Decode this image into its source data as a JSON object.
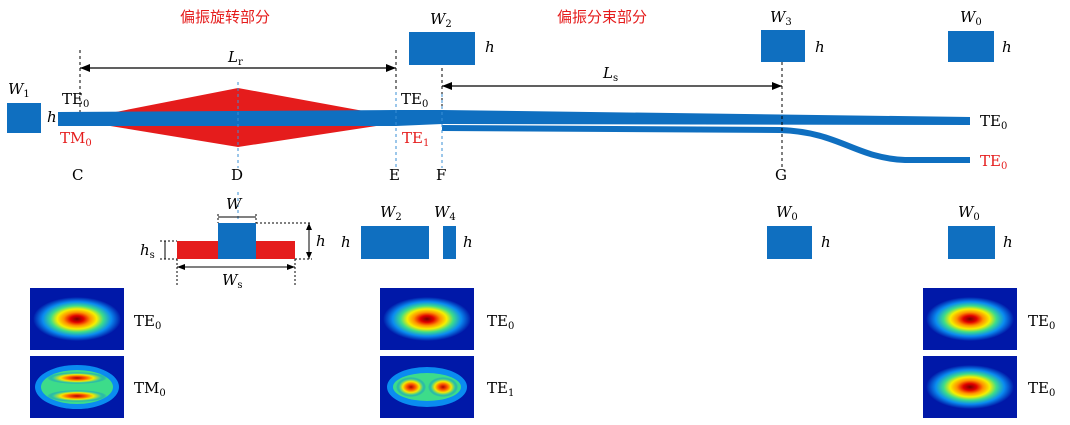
{
  "headings": {
    "rotation": "偏振旋转部分",
    "splitter": "偏振分束部分"
  },
  "dims": {
    "Lr": {
      "main": "L",
      "sub": "r"
    },
    "Ls": {
      "main": "L",
      "sub": "s"
    },
    "W": "W",
    "Ws": {
      "main": "W",
      "sub": "s"
    },
    "h": "h",
    "hs": {
      "main": "h",
      "sub": "s"
    },
    "W1": {
      "main": "W",
      "sub": "1"
    },
    "W2": {
      "main": "W",
      "sub": "2"
    },
    "W3": {
      "main": "W",
      "sub": "3"
    },
    "W4": {
      "main": "W",
      "sub": "4"
    },
    "W0": {
      "main": "W",
      "sub": "0"
    }
  },
  "points": [
    "C",
    "D",
    "E",
    "F",
    "G"
  ],
  "modes": {
    "TE0": {
      "main": "TE",
      "sub": "0"
    },
    "TM0": {
      "main": "TM",
      "sub": "0"
    },
    "TE1": {
      "main": "TE",
      "sub": "1"
    }
  },
  "colors": {
    "waveguide": "#0f6fc0",
    "rotator": "#e51c1c",
    "label_red": "#e51c1c"
  }
}
